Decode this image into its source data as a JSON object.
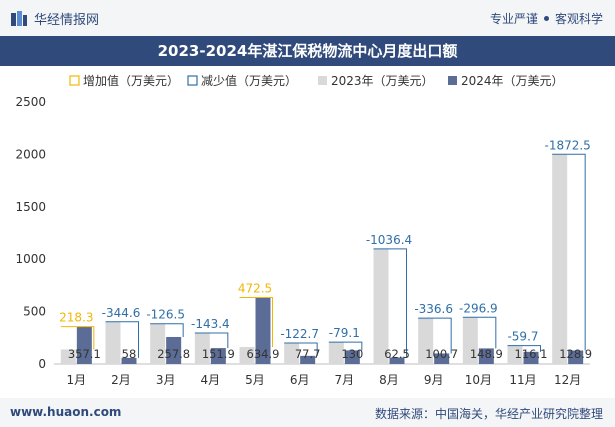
{
  "header": {
    "brand_name": "华经情报网",
    "slogan_left": "专业严谨",
    "slogan_right": "客观科学"
  },
  "title": "2023-2024年湛江保税物流中心月度出口额",
  "footer": {
    "website": "www.huaon.com",
    "source": "数据来源：中国海关，华经产业研究院整理"
  },
  "colors": {
    "brand": "#2f4a7b",
    "bar2023": "#d9d9d9",
    "bar2024": "#5b6d96",
    "increase": "#f2b705",
    "decrease": "#2f6fa8"
  },
  "chart_data": {
    "type": "bar",
    "title": "2023-2024年湛江保税物流中心月度出口额",
    "categories": [
      "1月",
      "2月",
      "3月",
      "4月",
      "5月",
      "6月",
      "7月",
      "8月",
      "9月",
      "10月",
      "11月",
      "12月"
    ],
    "series": [
      {
        "name": "2023年（万美元）",
        "values": [
          138.8,
          402.6,
          384.3,
          295.3,
          162.4,
          200.4,
          209.1,
          1098.9,
          437.3,
          445.8,
          175.8,
          2001.4
        ]
      },
      {
        "name": "2024年（万美元）",
        "values": [
          357.1,
          58,
          257.8,
          151.9,
          634.9,
          77.7,
          130,
          62.5,
          100.7,
          148.9,
          116.1,
          128.9
        ]
      }
    ],
    "bar_labels_2024": [
      "357.1",
      "58",
      "257.8",
      "151.9",
      "634.9",
      "77.7",
      "130",
      "62.5",
      "100.7",
      "148.9",
      "116.1",
      "128.9"
    ],
    "change": [
      218.3,
      -344.6,
      -126.5,
      -143.4,
      472.5,
      -122.7,
      -79.1,
      -1036.4,
      -336.6,
      -296.9,
      -59.7,
      -1872.5
    ],
    "change_labels": [
      "218.3",
      "-344.6",
      "-126.5",
      "-143.4",
      "472.5",
      "-122.7",
      "-79.1",
      "-1036.4",
      "-336.6",
      "-296.9",
      "-59.7",
      "-1872.5"
    ],
    "legend": [
      "增加值（万美元）",
      "减少值（万美元）",
      "2023年（万美元）",
      "2024年（万美元）"
    ],
    "yticks": [
      "0",
      "500",
      "1000",
      "1500",
      "2000",
      "2500"
    ],
    "ylim": [
      0,
      2500
    ],
    "legend_position": "top-left",
    "grid": false
  }
}
